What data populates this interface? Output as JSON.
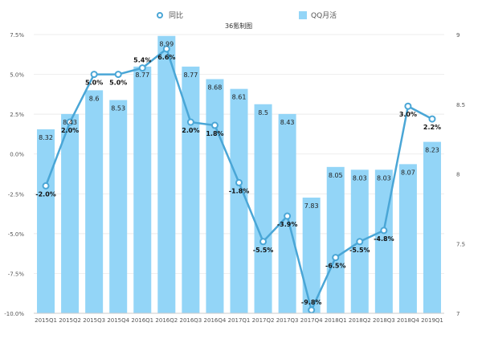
{
  "chart_data": {
    "type": "bar+line",
    "title": "36氪制图",
    "legend": [
      {
        "name": "同比",
        "type": "line",
        "color": "#4aa6d6"
      },
      {
        "name": "QQ月活",
        "type": "bar",
        "color": "#93d5f7"
      }
    ],
    "legend_position": "top",
    "categories": [
      "2015Q1",
      "2015Q2",
      "2015Q3",
      "2015Q4",
      "2016Q1",
      "2016Q2",
      "2016Q3",
      "2016Q4",
      "2017Q1",
      "2017Q2",
      "2017Q3",
      "2017Q4",
      "2018Q1",
      "2018Q2",
      "2018Q3",
      "2018Q4",
      "2019Q1"
    ],
    "series": [
      {
        "name": "QQ月活",
        "type": "bar",
        "axis": "right",
        "values": [
          8.32,
          8.43,
          8.6,
          8.53,
          8.77,
          8.99,
          8.77,
          8.68,
          8.61,
          8.5,
          8.43,
          7.83,
          8.05,
          8.03,
          8.03,
          8.07,
          8.23
        ]
      },
      {
        "name": "同比",
        "type": "line",
        "axis": "left",
        "values": [
          -2.0,
          2.0,
          5.0,
          5.0,
          5.4,
          6.6,
          2.0,
          1.8,
          -1.8,
          -5.5,
          -3.9,
          -9.8,
          -6.5,
          -5.5,
          -4.8,
          3.0,
          2.2
        ],
        "labels": [
          "-2.0%",
          "2.0%",
          "5.0%",
          "5.0%",
          "5.4%",
          "6.6%",
          "2.0%",
          "1.8%",
          "-1.8%",
          "-5.5%",
          "-3.9%",
          "-9.8%",
          "-6.5%",
          "-5.5%",
          "-4.8%",
          "3.0%",
          "2.2%"
        ]
      }
    ],
    "left_axis": {
      "ylim": [
        -10,
        7.5
      ],
      "ticks": [
        "-10.0%",
        "-7.5%",
        "-5.0%",
        "-2.5%",
        "0.0%",
        "2.5%",
        "5.0%",
        "7.5%"
      ]
    },
    "right_axis": {
      "ylim": [
        7,
        9
      ],
      "ticks": [
        "7",
        "7.5",
        "8",
        "8.5",
        "9"
      ]
    },
    "grid": true
  }
}
